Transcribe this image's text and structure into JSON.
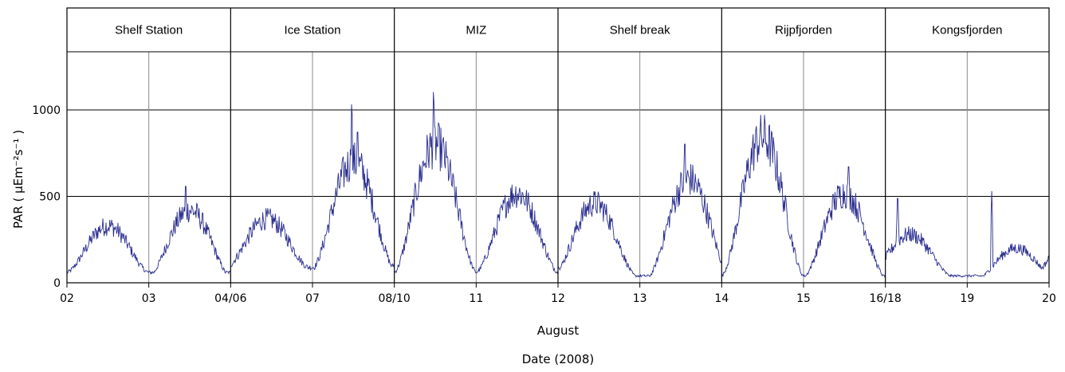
{
  "chart_data": {
    "type": "line",
    "ylabel": "PAR ( μEm⁻²s⁻¹ )",
    "xlabel": "August",
    "xlabel_secondary": "Date (2008)",
    "ylim": [
      0,
      1000
    ],
    "yticks": [
      0,
      500,
      1000
    ],
    "grid": true,
    "series_color": "#2b2f8f",
    "x_tick_labels": [
      "02",
      "03",
      "04/06",
      "07",
      "08/10",
      "11",
      "12",
      "13",
      "14",
      "15",
      "16/18",
      "19",
      "20"
    ],
    "panels": [
      {
        "title": "Shelf Station",
        "days": [
          2,
          3,
          4
        ],
        "peak_time": [
          2.5,
          3.5
        ],
        "peak_value": [
          330,
          420
        ],
        "min_value": [
          60,
          30
        ],
        "spike_time": [
          3.45
        ],
        "spike_value": [
          640
        ]
      },
      {
        "title": "Ice Station",
        "days": [
          6,
          7,
          8
        ],
        "peak_time": [
          6.45,
          7.5
        ],
        "peak_value": [
          370,
          700
        ],
        "min_value": [
          90,
          80
        ],
        "spike_time": [
          7.48,
          7.55
        ],
        "spike_value": [
          1150,
          1000
        ]
      },
      {
        "title": "MIZ",
        "days": [
          10,
          11,
          12
        ],
        "peak_time": [
          10.5,
          11.5
        ],
        "peak_value": [
          800,
          520
        ],
        "min_value": [
          60,
          60
        ],
        "spike_time": [
          10.48
        ],
        "spike_value": [
          1230
        ]
      },
      {
        "title": "Shelf break",
        "days": [
          12,
          13,
          14
        ],
        "peak_time": [
          12.45,
          13.6
        ],
        "peak_value": [
          460,
          600
        ],
        "min_value": [
          40,
          30
        ],
        "spike_time": [
          13.55
        ],
        "spike_value": [
          920
        ]
      },
      {
        "title": "Rijpfjorden",
        "days": [
          14,
          15,
          16
        ],
        "peak_time": [
          14.5,
          15.5
        ],
        "peak_value": [
          840,
          520
        ],
        "min_value": [
          40,
          30
        ],
        "spike_time": [
          15.55
        ],
        "spike_value": [
          770
        ]
      },
      {
        "title": "Kongsfjorden",
        "days": [
          18,
          19,
          20
        ],
        "peak_time": [
          18.3,
          19.6
        ],
        "peak_value": [
          280,
          200
        ],
        "min_value": [
          40,
          10
        ],
        "spike_time": [
          18.15,
          19.3
        ],
        "spike_value": [
          560,
          530
        ]
      }
    ]
  }
}
